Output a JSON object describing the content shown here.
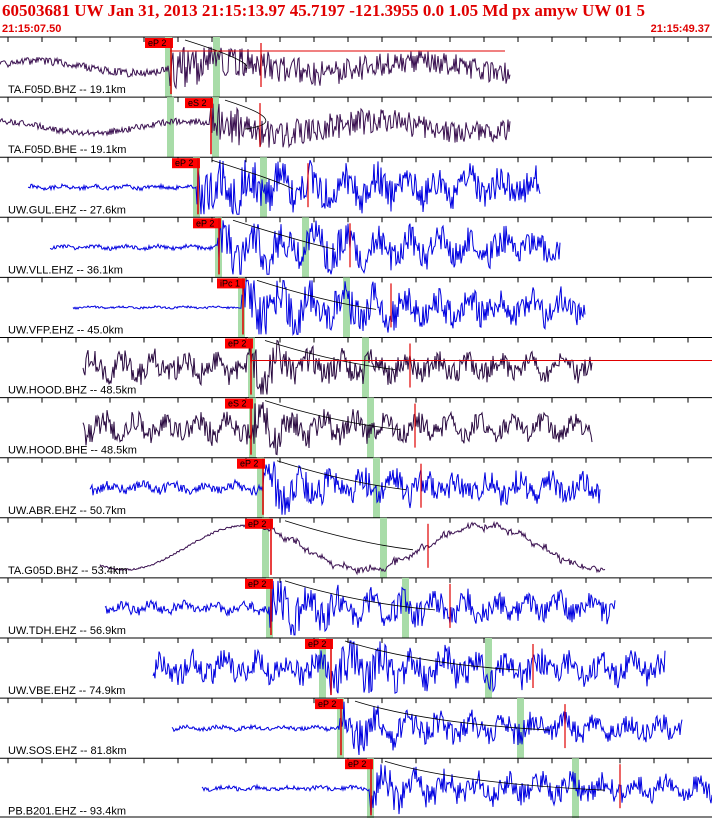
{
  "header": {
    "title": "60503681 UW Jan 31, 2013 21:15:13.97   45.7197 -121.3955  0.0 1.05 Md px amyw UW 01   5",
    "start_time": "21:15:07.50",
    "end_time": "21:15:49.37"
  },
  "traces": [
    {
      "label": "TA.F05D.BHZ -- 19.1km",
      "pick": "eP 2"
    },
    {
      "label": "TA.F05D.BHE -- 19.1km",
      "pick": "eS 2"
    },
    {
      "label": "UW.GUL.EHZ -- 27.6km",
      "pick": "eP 2"
    },
    {
      "label": "UW.VLL.EHZ -- 36.1km",
      "pick": "eP 2"
    },
    {
      "label": "UW.VFP.EHZ -- 45.0km",
      "pick": "iPc 1"
    },
    {
      "label": "UW.HOOD.BHZ -- 48.5km",
      "pick": "eP 2"
    },
    {
      "label": "UW.HOOD.BHE -- 48.5km",
      "pick": "eS 2"
    },
    {
      "label": "UW.ABR.EHZ -- 50.7km",
      "pick": "eP 2"
    },
    {
      "label": "TA.G05D.BHZ -- 53.4km",
      "pick": "eP 2"
    },
    {
      "label": "UW.TDH.EHZ -- 56.9km",
      "pick": "eP 2"
    },
    {
      "label": "UW.VBE.EHZ -- 74.9km",
      "pick": "eP 2"
    },
    {
      "label": "UW.SOS.EHZ -- 81.8km",
      "pick": "eP 2"
    },
    {
      "label": "PB.B201.EHZ -- 93.4km",
      "pick": "eP 2"
    }
  ]
}
